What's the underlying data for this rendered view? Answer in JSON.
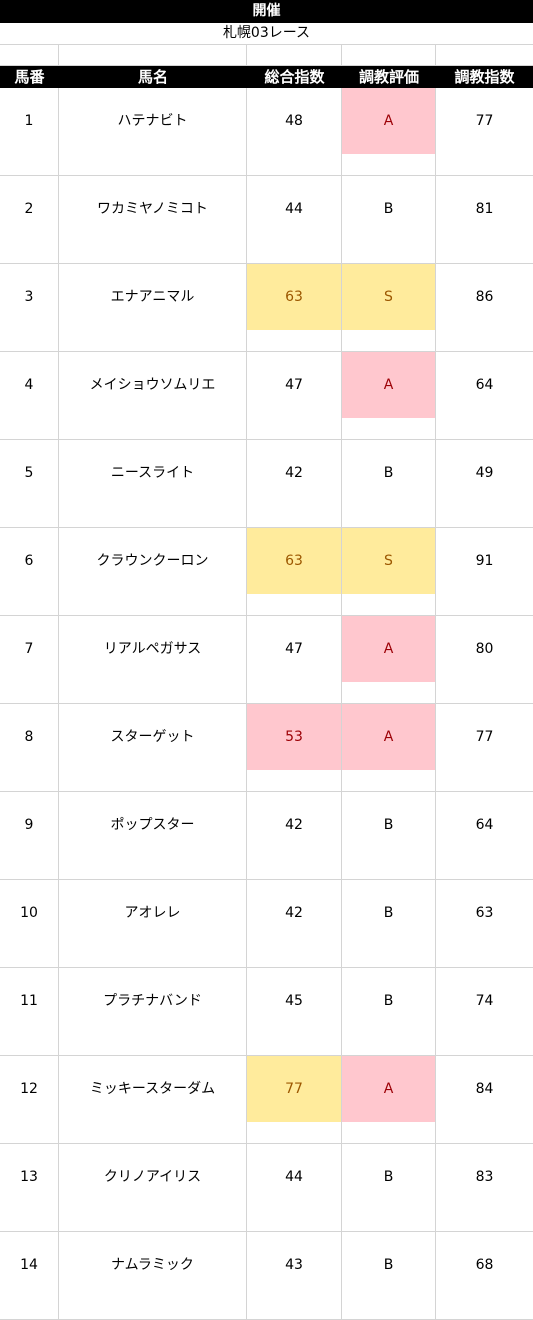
{
  "title": "開催",
  "race": "札幌03レース",
  "headers": [
    "馬番",
    "馬名",
    "総合指数",
    "調教評価",
    "調教指数"
  ],
  "highlight_colors": {
    "pink_bg": "#ffc7ce",
    "pink_text": "#9c0006",
    "yellow_bg": "#ffeb9c",
    "yellow_text": "#9c5700"
  },
  "rows": [
    {
      "no": "1",
      "name": "ハテナビト",
      "total": "48",
      "eval": "A",
      "train": "77",
      "total_hl": "",
      "eval_hl": "pink"
    },
    {
      "no": "2",
      "name": "ワカミヤノミコト",
      "total": "44",
      "eval": "B",
      "train": "81",
      "total_hl": "",
      "eval_hl": ""
    },
    {
      "no": "3",
      "name": "エナアニマル",
      "total": "63",
      "eval": "S",
      "train": "86",
      "total_hl": "yellow",
      "eval_hl": "yellow"
    },
    {
      "no": "4",
      "name": "メイショウソムリエ",
      "total": "47",
      "eval": "A",
      "train": "64",
      "total_hl": "",
      "eval_hl": "pink"
    },
    {
      "no": "5",
      "name": "ニースライト",
      "total": "42",
      "eval": "B",
      "train": "49",
      "total_hl": "",
      "eval_hl": ""
    },
    {
      "no": "6",
      "name": "クラウンクーロン",
      "total": "63",
      "eval": "S",
      "train": "91",
      "total_hl": "yellow",
      "eval_hl": "yellow"
    },
    {
      "no": "7",
      "name": "リアルペガサス",
      "total": "47",
      "eval": "A",
      "train": "80",
      "total_hl": "",
      "eval_hl": "pink"
    },
    {
      "no": "8",
      "name": "スターゲット",
      "total": "53",
      "eval": "A",
      "train": "77",
      "total_hl": "pink",
      "eval_hl": "pink"
    },
    {
      "no": "9",
      "name": "ポップスター",
      "total": "42",
      "eval": "B",
      "train": "64",
      "total_hl": "",
      "eval_hl": ""
    },
    {
      "no": "10",
      "name": "アオレレ",
      "total": "42",
      "eval": "B",
      "train": "63",
      "total_hl": "",
      "eval_hl": ""
    },
    {
      "no": "11",
      "name": "プラチナバンド",
      "total": "45",
      "eval": "B",
      "train": "74",
      "total_hl": "",
      "eval_hl": ""
    },
    {
      "no": "12",
      "name": "ミッキースターダム",
      "total": "77",
      "eval": "A",
      "train": "84",
      "total_hl": "yellow",
      "eval_hl": "pink"
    },
    {
      "no": "13",
      "name": "クリノアイリス",
      "total": "44",
      "eval": "B",
      "train": "83",
      "total_hl": "",
      "eval_hl": ""
    },
    {
      "no": "14",
      "name": "ナムラミック",
      "total": "43",
      "eval": "B",
      "train": "68",
      "total_hl": "",
      "eval_hl": ""
    }
  ]
}
